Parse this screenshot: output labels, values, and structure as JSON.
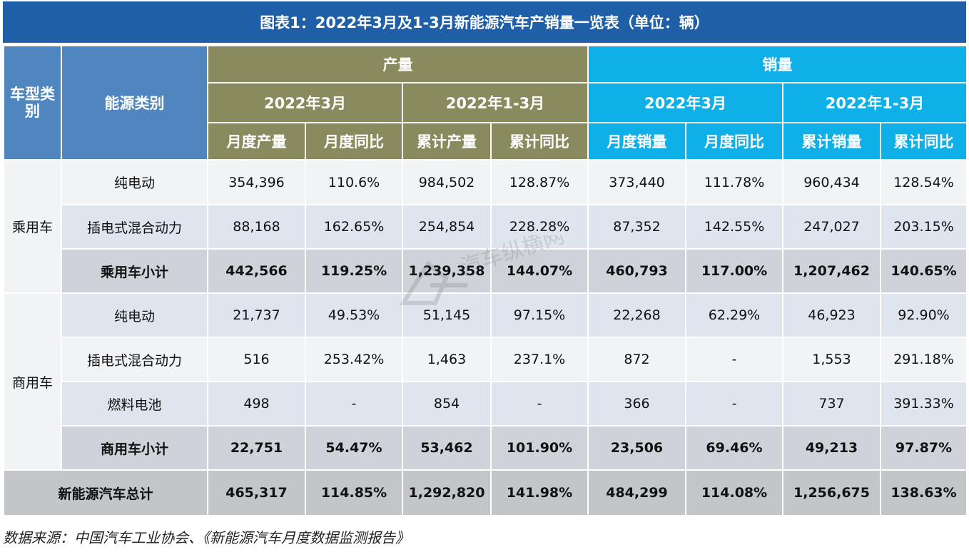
{
  "title": "图表1：2022年3月及1-3月新能源汽车产销量一览表（单位：辆）",
  "header": {
    "vehicle_type": "车型类别",
    "energy_type": "能源类别",
    "production": "产量",
    "sales": "销量",
    "period_month": "2022年3月",
    "period_ytd": "2022年1-3月",
    "cols": [
      "月度产量",
      "月度同比",
      "累计产量",
      "累计同比",
      "月度销量",
      "月度同比",
      "累计销量",
      "累计同比"
    ]
  },
  "groups": {
    "passenger": "乘用车",
    "commercial": "商用车"
  },
  "rows": [
    {
      "label": "纯电动",
      "values": [
        "354,396",
        "110.6%",
        "984,502",
        "128.87%",
        "373,440",
        "111.78%",
        "960,434",
        "128.54%"
      ]
    },
    {
      "label": "插电式混合动力",
      "values": [
        "88,168",
        "162.65%",
        "254,854",
        "228.28%",
        "87,352",
        "142.55%",
        "247,027",
        "203.15%"
      ]
    },
    {
      "label": "乘用车小计",
      "values": [
        "442,566",
        "119.25%",
        "1,239,358",
        "144.07%",
        "460,793",
        "117.00%",
        "1,207,462",
        "140.65%"
      ]
    },
    {
      "label": "纯电动",
      "values": [
        "21,737",
        "49.53%",
        "51,145",
        "97.15%",
        "22,268",
        "62.29%",
        "46,923",
        "92.90%"
      ]
    },
    {
      "label": "插电式混合动力",
      "values": [
        "516",
        "253.42%",
        "1,463",
        "237.1%",
        "872",
        "-",
        "1,553",
        "291.18%"
      ]
    },
    {
      "label": "燃料电池",
      "values": [
        "498",
        "-",
        "854",
        "-",
        "366",
        "-",
        "737",
        "391.33%"
      ]
    },
    {
      "label": "商用车小计",
      "values": [
        "22,751",
        "54.47%",
        "53,462",
        "101.90%",
        "23,506",
        "69.46%",
        "49,213",
        "97.87%"
      ]
    }
  ],
  "total": {
    "label": "新能源汽车总计",
    "values": [
      "465,317",
      "114.85%",
      "1,292,820",
      "141.98%",
      "484,299",
      "114.08%",
      "1,256,675",
      "138.63%"
    ]
  },
  "source": "数据来源：中国汽车工业协会、《新能源汽车月度数据监测报告》",
  "watermark": "汽车纵横网",
  "colors": {
    "title": "#1f5fa8",
    "header_blue": "#4f86c0",
    "production": "#8a8a5f",
    "sales": "#0fb0e8"
  }
}
